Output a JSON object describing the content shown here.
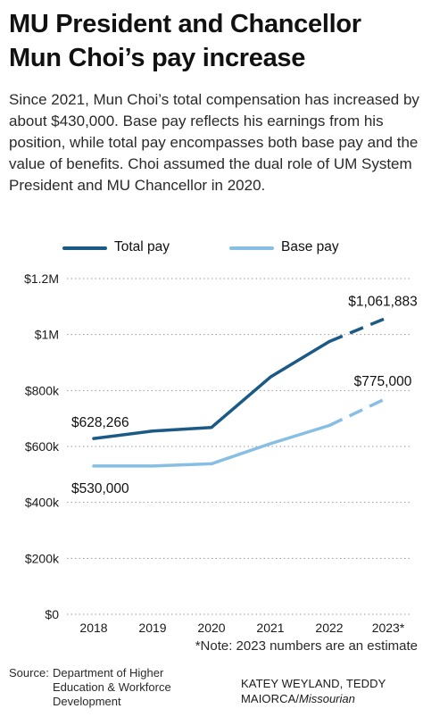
{
  "title": "MU President and Chancellor Mun Choi’s pay increase",
  "subtitle": "Since 2021, Mun Choi’s total compensation has increased by about $430,000. Base pay reflects his earnings from his position, while total pay encompasses both base pay and the value of benefits. Choi assumed the dual role of UM System President and MU Chancellor in 2020.",
  "legend": [
    {
      "label": "Total pay",
      "color": "#1c5a86"
    },
    {
      "label": "Base pay",
      "color": "#86bfe3"
    }
  ],
  "chart_data": {
    "type": "line",
    "title": "",
    "xlabel": "",
    "ylabel": "",
    "categories": [
      "2018",
      "2019",
      "2020",
      "2021",
      "2022",
      "2023*"
    ],
    "y_ticks": [
      0,
      200000,
      400000,
      600000,
      800000,
      1000000,
      1200000
    ],
    "y_tick_labels": [
      "$0",
      "$200k",
      "$400k",
      "$600k",
      "$800k",
      "$1M",
      "$1.2M"
    ],
    "ylim": [
      0,
      1200000
    ],
    "grid": "horizontal dotted",
    "legend_position": "top",
    "series": [
      {
        "name": "Total pay",
        "color": "#1c5a86",
        "values": [
          628266,
          655000,
          668000,
          848000,
          975000,
          1061883
        ],
        "dashed_from_index": 4,
        "labels": [
          {
            "index": 0,
            "text": "$628,266",
            "placement": "above"
          },
          {
            "index": 5,
            "text": "$1,061,883",
            "placement": "above"
          }
        ]
      },
      {
        "name": "Base pay",
        "color": "#86bfe3",
        "values": [
          530000,
          530000,
          538000,
          610000,
          675000,
          775000
        ],
        "dashed_from_index": 4,
        "labels": [
          {
            "index": 0,
            "text": "$530,000",
            "placement": "below"
          },
          {
            "index": 5,
            "text": "$775,000",
            "placement": "above"
          }
        ]
      }
    ]
  },
  "note": "*Note: 2023 numbers are an estimate",
  "source": {
    "label": "Source:",
    "text": "Department of Higher Education & Workforce Development"
  },
  "credit": {
    "names": "KATEY WEYLAND, TEDDY MAIORCA",
    "separator": "/",
    "publication": "Missourian"
  }
}
